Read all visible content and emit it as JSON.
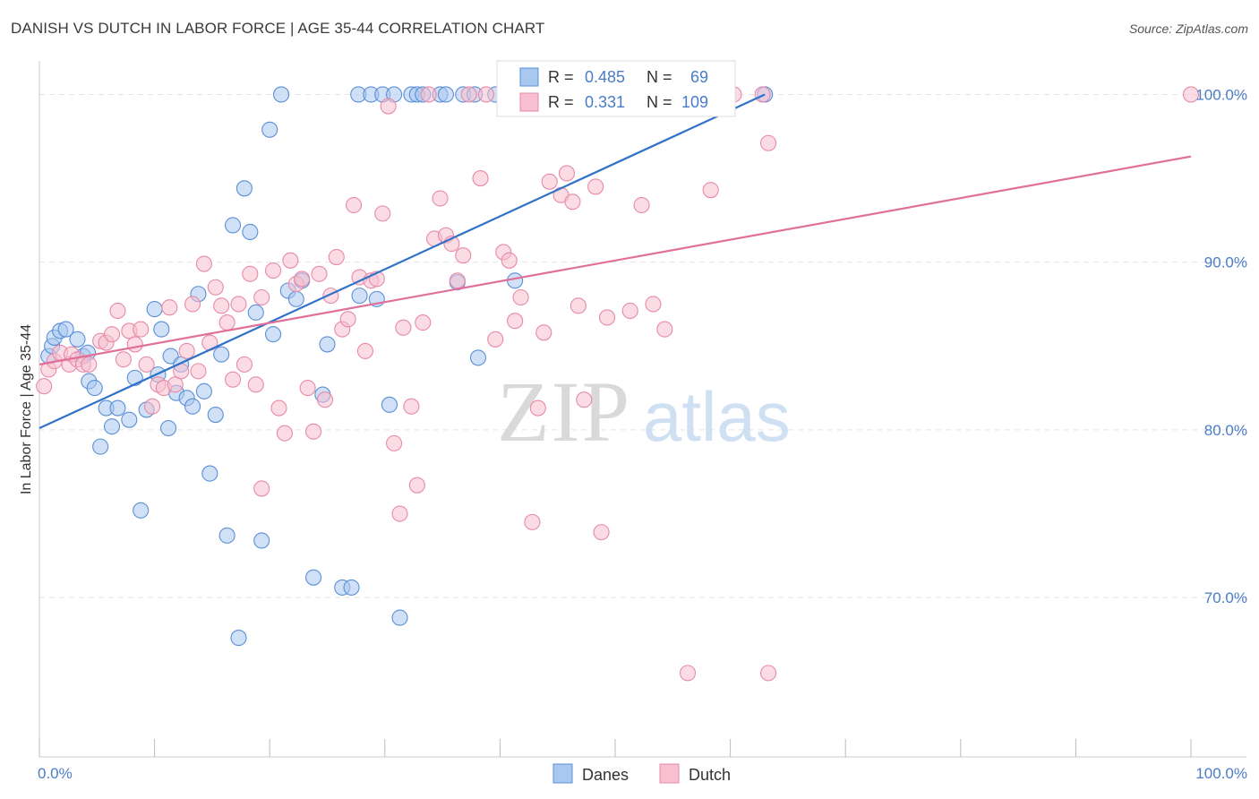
{
  "title": "DANISH VS DUTCH IN LABOR FORCE | AGE 35-44 CORRELATION CHART",
  "source": "Source: ZipAtlas.com",
  "watermark": {
    "zip": "ZIP",
    "atlas": "atlas"
  },
  "colors": {
    "danes_fill": "#a9c8f0",
    "danes_stroke": "#5b8fd6",
    "danes_line": "#2f72c8",
    "dutch_fill": "#f7bfd0",
    "dutch_stroke": "#e68aa8",
    "dutch_line": "#e0709a",
    "label_blue": "#4a7cc7",
    "grid": "#e4e4e4"
  },
  "chart_data": {
    "type": "scatter",
    "xlabel": "",
    "ylabel": "In Labor Force | Age 35-44",
    "xlim": [
      0,
      100
    ],
    "ylim": [
      60.5,
      102
    ],
    "x_tick_labels": [
      {
        "value": 0,
        "label": "0.0%"
      },
      {
        "value": 100,
        "label": "100.0%"
      }
    ],
    "y_ticks": [
      {
        "value": 70,
        "label": "70.0%"
      },
      {
        "value": 80,
        "label": "80.0%"
      },
      {
        "value": 90,
        "label": "90.0%"
      },
      {
        "value": 100,
        "label": "100.0%"
      }
    ],
    "grid": "horizontal dashed",
    "legend": {
      "placement": "top-center",
      "entries": [
        {
          "series": "Danes",
          "r_label": "R =",
          "r_value": "0.485",
          "n_label": "N =",
          "n_value": "69"
        },
        {
          "series": "Dutch",
          "r_label": "R =",
          "r_value": "0.331",
          "n_label": "N =",
          "n_value": "109"
        }
      ]
    },
    "series": [
      {
        "name": "Danes",
        "trend": {
          "x": [
            0,
            63
          ],
          "y": [
            80.1,
            100.0
          ]
        },
        "points": [
          [
            0.8,
            84.4
          ],
          [
            1.1,
            85.0
          ],
          [
            1.3,
            85.5
          ],
          [
            1.8,
            85.9
          ],
          [
            2.3,
            86.0
          ],
          [
            3.3,
            85.4
          ],
          [
            3.8,
            84.4
          ],
          [
            4.2,
            84.6
          ],
          [
            4.3,
            82.9
          ],
          [
            4.8,
            82.5
          ],
          [
            5.3,
            79.0
          ],
          [
            5.8,
            81.3
          ],
          [
            6.3,
            80.2
          ],
          [
            6.8,
            81.3
          ],
          [
            7.8,
            80.6
          ],
          [
            8.3,
            83.1
          ],
          [
            8.8,
            75.2
          ],
          [
            9.3,
            81.2
          ],
          [
            10.0,
            87.2
          ],
          [
            10.3,
            83.3
          ],
          [
            10.6,
            86.0
          ],
          [
            11.2,
            80.1
          ],
          [
            11.4,
            84.4
          ],
          [
            11.9,
            82.2
          ],
          [
            12.3,
            83.9
          ],
          [
            12.8,
            81.9
          ],
          [
            13.3,
            81.4
          ],
          [
            13.8,
            88.1
          ],
          [
            14.3,
            82.3
          ],
          [
            14.8,
            77.4
          ],
          [
            15.3,
            80.9
          ],
          [
            15.8,
            84.5
          ],
          [
            16.3,
            73.7
          ],
          [
            16.8,
            92.2
          ],
          [
            17.3,
            67.6
          ],
          [
            17.8,
            94.4
          ],
          [
            18.3,
            91.8
          ],
          [
            18.8,
            87.0
          ],
          [
            19.3,
            73.4
          ],
          [
            20.0,
            97.9
          ],
          [
            20.3,
            85.7
          ],
          [
            21.0,
            100.0
          ],
          [
            21.6,
            88.3
          ],
          [
            22.3,
            87.8
          ],
          [
            22.8,
            88.9
          ],
          [
            23.8,
            71.2
          ],
          [
            24.6,
            82.1
          ],
          [
            25.0,
            85.1
          ],
          [
            26.3,
            70.6
          ],
          [
            27.1,
            70.6
          ],
          [
            27.7,
            100.0
          ],
          [
            27.8,
            88.0
          ],
          [
            28.8,
            100.0
          ],
          [
            29.3,
            87.8
          ],
          [
            29.8,
            100.0
          ],
          [
            30.4,
            81.5
          ],
          [
            30.8,
            100.0
          ],
          [
            31.3,
            68.8
          ],
          [
            32.3,
            100.0
          ],
          [
            32.8,
            100.0
          ],
          [
            33.3,
            100.0
          ],
          [
            34.8,
            100.0
          ],
          [
            35.3,
            100.0
          ],
          [
            36.3,
            88.8
          ],
          [
            36.8,
            100.0
          ],
          [
            37.8,
            100.0
          ],
          [
            38.1,
            84.3
          ],
          [
            39.6,
            100.0
          ],
          [
            41.3,
            88.9
          ],
          [
            63.0,
            100.0
          ]
        ]
      },
      {
        "name": "Dutch",
        "trend": {
          "x": [
            0,
            100
          ],
          "y": [
            83.9,
            96.3
          ]
        },
        "points": [
          [
            0.4,
            82.6
          ],
          [
            0.8,
            83.6
          ],
          [
            1.3,
            84.1
          ],
          [
            1.8,
            84.6
          ],
          [
            2.6,
            83.9
          ],
          [
            2.8,
            84.5
          ],
          [
            3.3,
            84.2
          ],
          [
            3.8,
            83.9
          ],
          [
            4.3,
            83.9
          ],
          [
            5.3,
            85.3
          ],
          [
            5.8,
            85.2
          ],
          [
            6.3,
            85.7
          ],
          [
            6.8,
            87.1
          ],
          [
            7.3,
            84.2
          ],
          [
            7.8,
            85.9
          ],
          [
            8.3,
            85.1
          ],
          [
            8.8,
            86.0
          ],
          [
            9.3,
            83.9
          ],
          [
            9.8,
            81.4
          ],
          [
            10.3,
            82.7
          ],
          [
            10.8,
            82.5
          ],
          [
            11.3,
            87.3
          ],
          [
            11.8,
            82.7
          ],
          [
            12.3,
            83.5
          ],
          [
            12.8,
            84.7
          ],
          [
            13.3,
            87.5
          ],
          [
            13.8,
            83.5
          ],
          [
            14.3,
            89.9
          ],
          [
            14.8,
            85.2
          ],
          [
            15.3,
            88.5
          ],
          [
            15.8,
            87.4
          ],
          [
            16.3,
            86.4
          ],
          [
            16.8,
            83.0
          ],
          [
            17.3,
            87.5
          ],
          [
            17.8,
            83.9
          ],
          [
            18.3,
            89.3
          ],
          [
            18.8,
            82.7
          ],
          [
            19.3,
            87.9
          ],
          [
            19.3,
            76.5
          ],
          [
            20.3,
            89.5
          ],
          [
            20.8,
            81.3
          ],
          [
            21.3,
            79.8
          ],
          [
            21.8,
            90.1
          ],
          [
            22.3,
            88.7
          ],
          [
            22.8,
            89.0
          ],
          [
            23.3,
            82.5
          ],
          [
            23.8,
            79.9
          ],
          [
            24.3,
            89.3
          ],
          [
            24.8,
            81.8
          ],
          [
            25.3,
            88.0
          ],
          [
            25.8,
            90.3
          ],
          [
            26.3,
            86.0
          ],
          [
            26.8,
            86.6
          ],
          [
            27.3,
            93.4
          ],
          [
            27.8,
            89.1
          ],
          [
            28.3,
            84.7
          ],
          [
            28.8,
            88.9
          ],
          [
            29.3,
            89.0
          ],
          [
            29.8,
            92.9
          ],
          [
            30.3,
            99.3
          ],
          [
            30.8,
            79.2
          ],
          [
            31.3,
            75.0
          ],
          [
            31.6,
            86.1
          ],
          [
            32.3,
            81.4
          ],
          [
            32.8,
            76.7
          ],
          [
            33.3,
            86.4
          ],
          [
            33.8,
            100.0
          ],
          [
            34.3,
            91.4
          ],
          [
            34.8,
            93.8
          ],
          [
            35.3,
            91.6
          ],
          [
            35.8,
            91.1
          ],
          [
            36.3,
            88.9
          ],
          [
            36.8,
            90.4
          ],
          [
            37.3,
            100.0
          ],
          [
            38.3,
            95.0
          ],
          [
            38.8,
            100.0
          ],
          [
            39.6,
            85.4
          ],
          [
            40.3,
            90.6
          ],
          [
            40.8,
            90.1
          ],
          [
            41.3,
            86.5
          ],
          [
            41.8,
            87.9
          ],
          [
            42.3,
            100.0
          ],
          [
            42.8,
            74.5
          ],
          [
            43.3,
            81.3
          ],
          [
            43.8,
            85.8
          ],
          [
            44.3,
            94.8
          ],
          [
            44.8,
            100.0
          ],
          [
            45.3,
            94.0
          ],
          [
            45.8,
            95.3
          ],
          [
            46.3,
            93.6
          ],
          [
            46.8,
            87.4
          ],
          [
            47.3,
            81.8
          ],
          [
            48.3,
            94.5
          ],
          [
            48.8,
            73.9
          ],
          [
            49.3,
            86.7
          ],
          [
            50.3,
            100.0
          ],
          [
            51.3,
            87.1
          ],
          [
            52.3,
            93.4
          ],
          [
            53.3,
            87.5
          ],
          [
            54.3,
            86.0
          ],
          [
            55.3,
            100.0
          ],
          [
            56.3,
            65.5
          ],
          [
            58.3,
            94.3
          ],
          [
            60.3,
            100.0
          ],
          [
            62.8,
            100.0
          ],
          [
            63.3,
            97.1
          ],
          [
            63.3,
            65.5
          ],
          [
            100.0,
            100.0
          ]
        ]
      }
    ]
  },
  "bottom_legend": [
    {
      "label": "Danes"
    },
    {
      "label": "Dutch"
    }
  ]
}
